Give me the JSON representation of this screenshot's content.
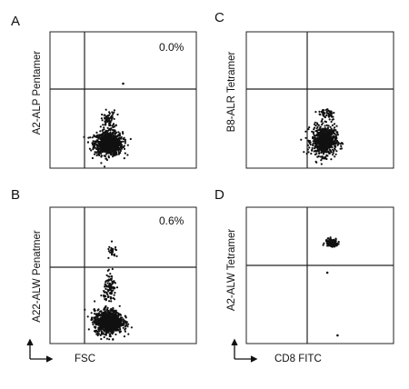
{
  "figure": {
    "axis_hint_x": "FSC",
    "axis_hint_x_right": "CD8 FITC"
  },
  "chart_data": [
    {
      "type": "scatter",
      "panel": "A",
      "ylabel": "A2-ALP Pentamer",
      "annotation": "0.0%",
      "quadrant_gate": "x≈0.38, y≈0.48 of plot range",
      "clusters": [
        {
          "center": [
            0.4,
            0.18
          ],
          "spread": [
            0.08,
            0.07
          ],
          "count": 900
        },
        {
          "center": [
            0.4,
            0.35
          ],
          "spread": [
            0.04,
            0.06
          ],
          "count": 80
        }
      ],
      "outliers": [
        [
          0.5,
          0.62
        ]
      ]
    },
    {
      "type": "scatter",
      "panel": "C",
      "ylabel": "B8-ALR Tetramer",
      "annotation": "",
      "clusters": [
        {
          "center": [
            0.53,
            0.2
          ],
          "spread": [
            0.07,
            0.09
          ],
          "count": 700
        },
        {
          "center": [
            0.55,
            0.4
          ],
          "spread": [
            0.05,
            0.04
          ],
          "count": 50
        }
      ],
      "outliers": []
    },
    {
      "type": "scatter",
      "panel": "B",
      "ylabel": "A22-ALW Penatmer",
      "annotation": "0.6%",
      "clusters": [
        {
          "center": [
            0.4,
            0.16
          ],
          "spread": [
            0.08,
            0.07
          ],
          "count": 1000
        },
        {
          "center": [
            0.41,
            0.4
          ],
          "spread": [
            0.035,
            0.09
          ],
          "count": 110
        },
        {
          "center": [
            0.43,
            0.67
          ],
          "spread": [
            0.03,
            0.04
          ],
          "count": 25
        }
      ],
      "outliers": []
    },
    {
      "type": "scatter",
      "panel": "D",
      "ylabel": "A2-ALW Tetramer",
      "annotation": "",
      "clusters": [
        {
          "center": [
            0.58,
            0.74
          ],
          "spread": [
            0.035,
            0.025
          ],
          "count": 140
        }
      ],
      "outliers": [
        [
          0.55,
          0.52
        ],
        [
          0.62,
          0.06
        ]
      ]
    }
  ],
  "panels": [
    {
      "letter": "A",
      "ylabel": "A2-ALP Pentamer",
      "pct": "0.0%"
    },
    {
      "letter": "C",
      "ylabel": "B8-ALR Tetramer",
      "pct": ""
    },
    {
      "letter": "B",
      "ylabel": "A22-ALW Penatmer",
      "pct": "0.6%"
    },
    {
      "letter": "D",
      "ylabel": "A2-ALW Tetramer",
      "pct": ""
    }
  ]
}
